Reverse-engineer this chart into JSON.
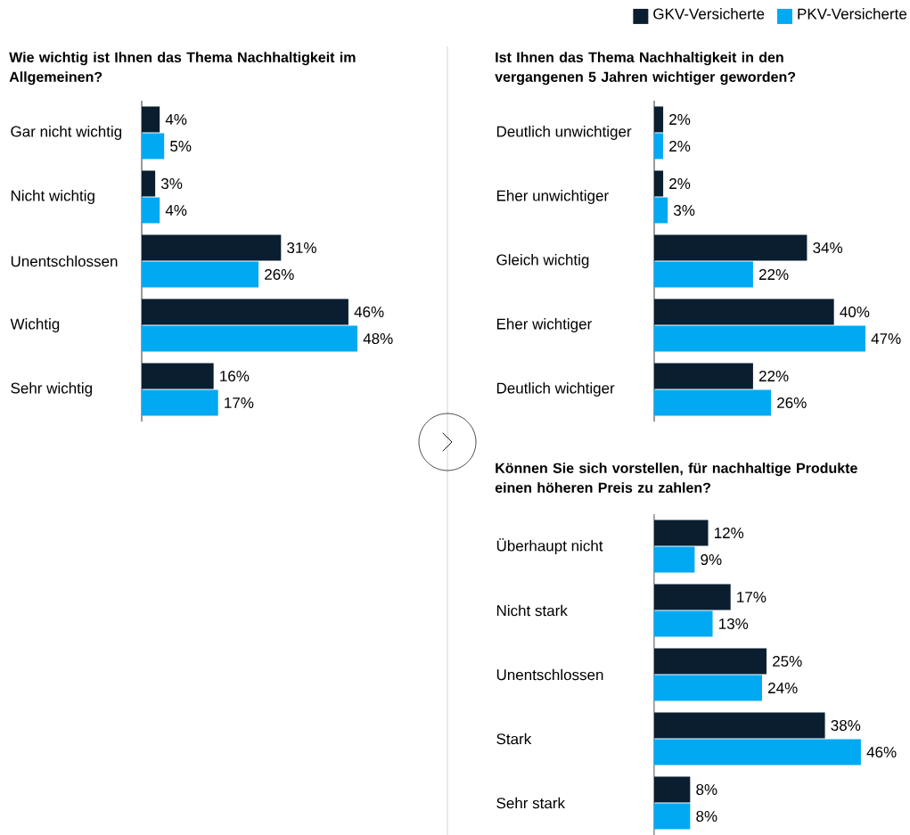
{
  "chart_data": [
    {
      "type": "bar",
      "orientation": "horizontal",
      "title": "Wie wichtig ist Ihnen das Thema Nachhaltigkeit im Allgemeinen?",
      "categories": [
        "Gar nicht wichtig",
        "Nicht wichtig",
        "Unentschlossen",
        "Wichtig",
        "Sehr wichtig"
      ],
      "legend": "top right",
      "series": [
        {
          "name": "GKV-Versicherte",
          "color": "#0b1e30",
          "values": [
            4,
            3,
            31,
            46,
            16
          ],
          "value_labels": [
            "4%",
            "3%",
            "31%",
            "46%",
            "16%"
          ]
        },
        {
          "name": "PKV-Versicherte",
          "color": "#00a9f2",
          "values": [
            5,
            4,
            26,
            48,
            17
          ],
          "value_labels": [
            "5%",
            "4%",
            "26%",
            "48%",
            "17%"
          ]
        }
      ]
    },
    {
      "type": "bar",
      "orientation": "horizontal",
      "title": "Ist Ihnen das Thema Nachhaltigkeit in den vergangenen 5 Jahren wichtiger geworden?",
      "categories": [
        "Deutlich unwichtiger",
        "Eher unwichtiger",
        "Gleich wichtig",
        "Eher wichtiger",
        "Deutlich wichtiger"
      ],
      "series": [
        {
          "color": "#0b1e30",
          "values": [
            2,
            2,
            34,
            40,
            22
          ],
          "value_labels": [
            "2%",
            "2%",
            "34%",
            "40%",
            "22%"
          ]
        },
        {
          "color": "#00a9f2",
          "values": [
            2,
            3,
            22,
            47,
            26
          ],
          "value_labels": [
            "2%",
            "3%",
            "22%",
            "47%",
            "26%"
          ]
        }
      ]
    },
    {
      "type": "bar",
      "orientation": "horizontal",
      "title": "Können Sie sich vorstellen, für nachhaltige Produkte einen höheren Preis zu zahlen?",
      "categories": [
        "Überhaupt nicht",
        "Nicht stark",
        "Unentschlossen",
        "Stark",
        "Sehr stark"
      ],
      "series": [
        {
          "color": "#0b1e30",
          "values": [
            12,
            17,
            25,
            38,
            8
          ],
          "value_labels": [
            "12%",
            "17%",
            "25%",
            "38%",
            "8%"
          ]
        },
        {
          "color": "#00a9f2",
          "values": [
            9,
            13,
            24,
            46,
            8
          ],
          "value_labels": [
            "9%",
            "13%",
            "24%",
            "46%",
            "8%"
          ]
        }
      ]
    }
  ]
}
